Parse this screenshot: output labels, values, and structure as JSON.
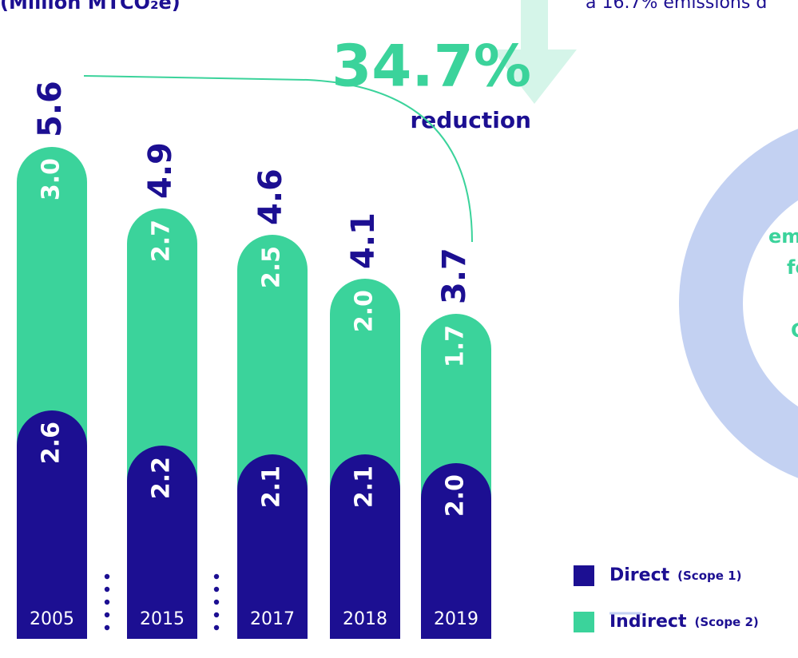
{
  "chart_data": {
    "type": "bar",
    "stacked": true,
    "subtitle": "(Million MTCO₂e)",
    "side_text": "a 16.7% emissions d",
    "reduction_value": "34.7%",
    "reduction_label": "reduction",
    "donut_fragments": [
      "em",
      "fo",
      "C"
    ],
    "donut_color": "#c3d1f2",
    "categories": [
      "2005",
      "2015",
      "2017",
      "2018",
      "2019"
    ],
    "series": [
      {
        "name": "Direct",
        "scope": "(Scope 1)",
        "color": "#1c0f92",
        "values": [
          2.6,
          2.2,
          2.1,
          2.1,
          2.0
        ],
        "value_labels": [
          "2.6",
          "2.2",
          "2.1",
          "2.1",
          "2.0"
        ]
      },
      {
        "name": "Indirect",
        "scope": "(Scope 2)",
        "color": "#3bd39b",
        "values": [
          3.0,
          2.7,
          2.5,
          2.0,
          1.7
        ],
        "value_labels": [
          "3.0",
          "2.7",
          "2.5",
          "2.0",
          "1.7"
        ]
      }
    ],
    "totals": [
      5.6,
      4.9,
      4.6,
      4.1,
      3.7
    ]
  }
}
